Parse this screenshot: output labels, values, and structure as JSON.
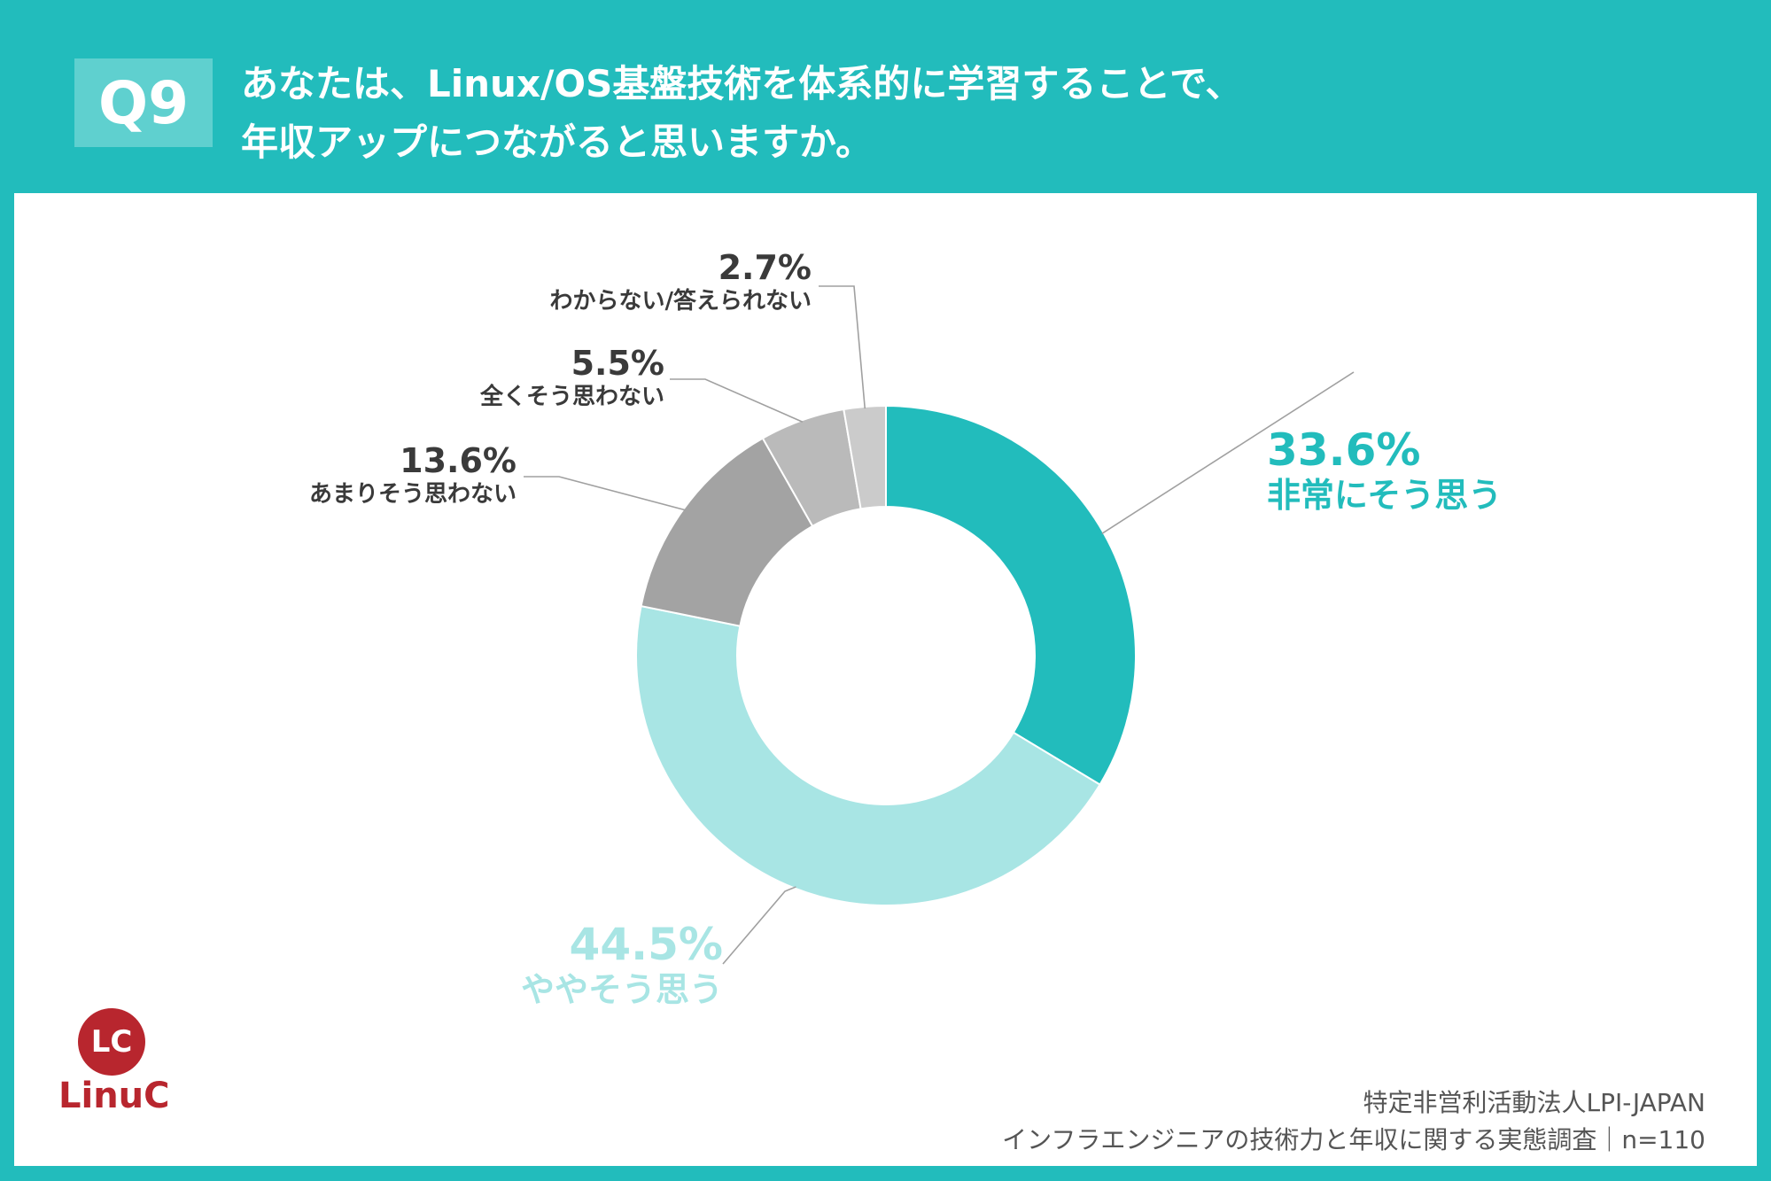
{
  "header": {
    "question_number": "Q9",
    "title_line1": "あなたは、Linux/OS基盤技術を体系的に学習することで、",
    "title_line2": "年収アップにつながると思いますか。"
  },
  "chart_data": {
    "type": "pie",
    "donut": true,
    "title": "",
    "start_angle_deg": 0,
    "direction": "clockwise",
    "slices": [
      {
        "label": "非常にそう思う",
        "value": 33.6,
        "value_label": "33.6%",
        "color": "#22bcbc"
      },
      {
        "label": "ややそう思う",
        "value": 44.5,
        "value_label": "44.5%",
        "color": "#a8e5e4"
      },
      {
        "label": "あまりそう思わない",
        "value": 13.6,
        "value_label": "13.6%",
        "color": "#a3a3a3"
      },
      {
        "label": "全くそう思わない",
        "value": 5.5,
        "value_label": "5.5%",
        "color": "#bababa"
      },
      {
        "label": "わからない/答えられない",
        "value": 2.7,
        "value_label": "2.7%",
        "color": "#cbcbcb"
      }
    ]
  },
  "logo": {
    "mark": "LC",
    "name": "LinuC"
  },
  "source": {
    "line1": "特定非営利活動法人LPI-JAPAN",
    "line2": "インフラエンジニアの技術力と年収に関する実態調査｜n=110"
  }
}
